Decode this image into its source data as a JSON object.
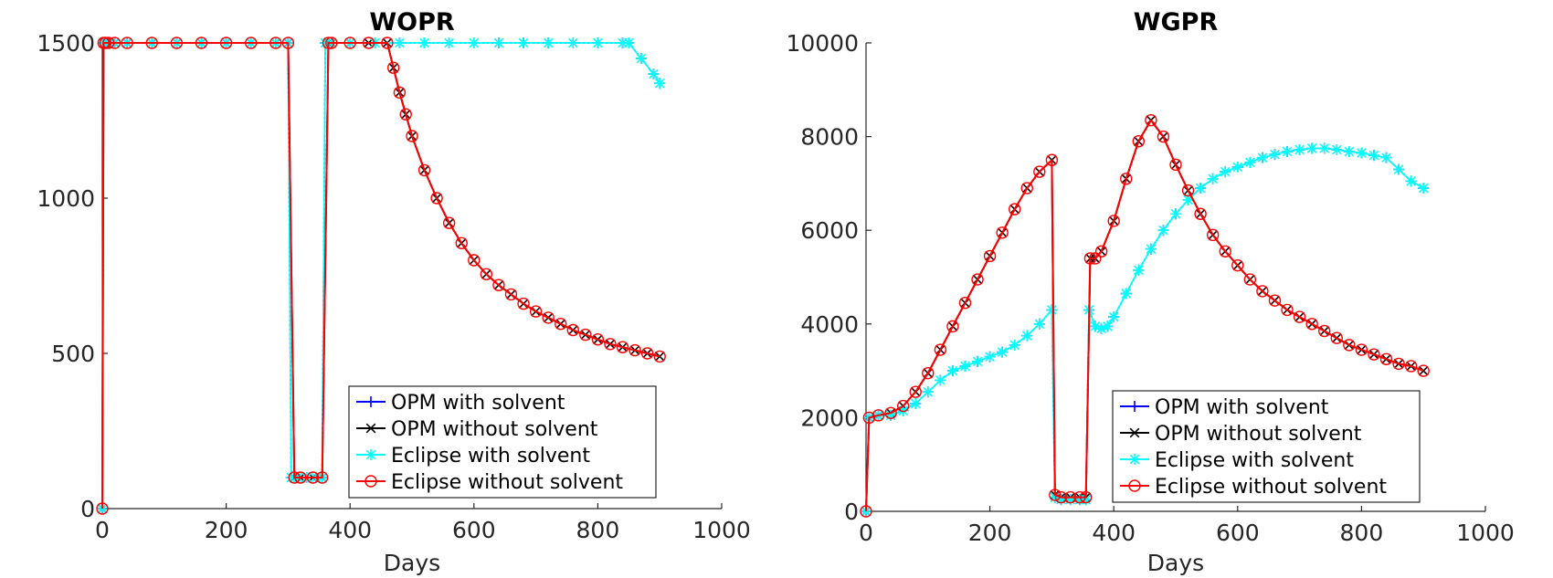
{
  "chart_data": [
    {
      "type": "line",
      "title": "WOPR",
      "xlabel": "Days",
      "ylabel": "",
      "xlim": [
        0,
        1000
      ],
      "ylim": [
        0,
        1500
      ],
      "xticks": [
        "0",
        "200",
        "400",
        "600",
        "800",
        "1000"
      ],
      "yticks": [
        "0",
        "500",
        "1000",
        "1500"
      ],
      "legend_position": "bottom-right",
      "series": [
        {
          "name": "OPM with solvent",
          "color": "#0000ff",
          "marker": "plus",
          "x": [
            0,
            2,
            5,
            10,
            20,
            40,
            80,
            120,
            160,
            200,
            240,
            280,
            300,
            305,
            315,
            330,
            345,
            355,
            360,
            370,
            400,
            440,
            480,
            520,
            560,
            600,
            640,
            680,
            720,
            760,
            800,
            840,
            850,
            870,
            890,
            900
          ],
          "y": [
            0,
            1500,
            1500,
            1500,
            1500,
            1500,
            1500,
            1500,
            1500,
            1500,
            1500,
            1500,
            1500,
            100,
            100,
            100,
            100,
            100,
            1500,
            1500,
            1500,
            1500,
            1500,
            1500,
            1500,
            1500,
            1500,
            1500,
            1500,
            1500,
            1500,
            1500,
            1500,
            1450,
            1400,
            1370
          ]
        },
        {
          "name": "OPM without solvent",
          "color": "#000000",
          "marker": "x",
          "x": [
            0,
            2,
            5,
            10,
            20,
            40,
            80,
            120,
            160,
            200,
            240,
            280,
            300,
            310,
            320,
            340,
            355,
            365,
            370,
            400,
            430,
            460,
            470,
            480,
            490,
            500,
            520,
            540,
            560,
            580,
            600,
            620,
            640,
            660,
            680,
            700,
            720,
            740,
            760,
            780,
            800,
            820,
            840,
            860,
            880,
            900
          ],
          "y": [
            0,
            1500,
            1500,
            1500,
            1500,
            1500,
            1500,
            1500,
            1500,
            1500,
            1500,
            1500,
            1500,
            100,
            100,
            100,
            100,
            1500,
            1500,
            1500,
            1500,
            1500,
            1420,
            1340,
            1270,
            1200,
            1090,
            1000,
            920,
            855,
            800,
            755,
            720,
            690,
            660,
            635,
            615,
            595,
            575,
            560,
            545,
            530,
            520,
            510,
            500,
            490
          ]
        },
        {
          "name": "Eclipse with solvent",
          "color": "#00ffff",
          "marker": "asterisk",
          "x": [
            0,
            2,
            5,
            10,
            20,
            40,
            80,
            120,
            160,
            200,
            240,
            280,
            300,
            305,
            315,
            330,
            345,
            355,
            360,
            370,
            400,
            440,
            480,
            520,
            560,
            600,
            640,
            680,
            720,
            760,
            800,
            840,
            850,
            870,
            890,
            900
          ],
          "y": [
            0,
            1500,
            1500,
            1500,
            1500,
            1500,
            1500,
            1500,
            1500,
            1500,
            1500,
            1500,
            1500,
            100,
            100,
            100,
            100,
            100,
            1500,
            1500,
            1500,
            1500,
            1500,
            1500,
            1500,
            1500,
            1500,
            1500,
            1500,
            1500,
            1500,
            1500,
            1500,
            1450,
            1400,
            1370
          ]
        },
        {
          "name": "Eclipse without solvent",
          "color": "#ff0000",
          "marker": "circle",
          "x": [
            0,
            2,
            5,
            10,
            20,
            40,
            80,
            120,
            160,
            200,
            240,
            280,
            300,
            310,
            320,
            340,
            355,
            365,
            370,
            400,
            430,
            460,
            470,
            480,
            490,
            500,
            520,
            540,
            560,
            580,
            600,
            620,
            640,
            660,
            680,
            700,
            720,
            740,
            760,
            780,
            800,
            820,
            840,
            860,
            880,
            900
          ],
          "y": [
            0,
            1500,
            1500,
            1500,
            1500,
            1500,
            1500,
            1500,
            1500,
            1500,
            1500,
            1500,
            1500,
            100,
            100,
            100,
            100,
            1500,
            1500,
            1500,
            1500,
            1500,
            1420,
            1340,
            1270,
            1200,
            1090,
            1000,
            920,
            855,
            800,
            755,
            720,
            690,
            660,
            635,
            615,
            595,
            575,
            560,
            545,
            530,
            520,
            510,
            500,
            490
          ]
        }
      ]
    },
    {
      "type": "line",
      "title": "WGPR",
      "xlabel": "Days",
      "ylabel": "",
      "xlim": [
        0,
        1000
      ],
      "ylim": [
        0,
        10000
      ],
      "xticks": [
        "0",
        "200",
        "400",
        "600",
        "800",
        "1000"
      ],
      "yticks": [
        "0",
        "2000",
        "4000",
        "6000",
        "8000",
        "10000"
      ],
      "legend_position": "bottom-right",
      "series": [
        {
          "name": "OPM with solvent",
          "color": "#0000ff",
          "marker": "plus",
          "x": [
            0,
            5,
            20,
            40,
            60,
            80,
            100,
            120,
            140,
            160,
            180,
            200,
            220,
            240,
            260,
            280,
            300,
            305,
            315,
            330,
            345,
            355,
            360,
            370,
            380,
            390,
            400,
            420,
            440,
            460,
            480,
            500,
            520,
            540,
            560,
            580,
            600,
            620,
            640,
            660,
            680,
            700,
            720,
            740,
            760,
            780,
            800,
            820,
            840,
            860,
            880,
            900
          ],
          "y": [
            0,
            2000,
            2050,
            2050,
            2150,
            2300,
            2550,
            2800,
            3000,
            3100,
            3200,
            3300,
            3400,
            3550,
            3750,
            4000,
            4300,
            300,
            250,
            250,
            250,
            250,
            4300,
            3950,
            3900,
            3950,
            4150,
            4650,
            5150,
            5600,
            6000,
            6350,
            6650,
            6900,
            7100,
            7250,
            7350,
            7450,
            7550,
            7620,
            7680,
            7720,
            7750,
            7750,
            7720,
            7680,
            7650,
            7600,
            7550,
            7300,
            7050,
            6900
          ]
        },
        {
          "name": "OPM without solvent",
          "color": "#000000",
          "marker": "x",
          "x": [
            0,
            5,
            20,
            40,
            60,
            80,
            100,
            120,
            140,
            160,
            180,
            200,
            220,
            240,
            260,
            280,
            300,
            305,
            315,
            330,
            345,
            355,
            362,
            370,
            380,
            400,
            420,
            440,
            460,
            480,
            500,
            520,
            540,
            560,
            580,
            600,
            620,
            640,
            660,
            680,
            700,
            720,
            740,
            760,
            780,
            800,
            820,
            840,
            860,
            880,
            900
          ],
          "y": [
            0,
            2000,
            2050,
            2100,
            2250,
            2550,
            2950,
            3450,
            3950,
            4450,
            4950,
            5450,
            5950,
            6450,
            6900,
            7250,
            7500,
            350,
            300,
            300,
            300,
            300,
            5400,
            5400,
            5550,
            6200,
            7100,
            7900,
            8350,
            8000,
            7400,
            6850,
            6350,
            5900,
            5550,
            5250,
            4950,
            4700,
            4500,
            4300,
            4150,
            4000,
            3850,
            3700,
            3550,
            3450,
            3350,
            3250,
            3150,
            3100,
            3000
          ]
        },
        {
          "name": "Eclipse with solvent",
          "color": "#00ffff",
          "marker": "asterisk",
          "x": [
            0,
            5,
            20,
            40,
            60,
            80,
            100,
            120,
            140,
            160,
            180,
            200,
            220,
            240,
            260,
            280,
            300,
            305,
            315,
            330,
            345,
            355,
            360,
            370,
            380,
            390,
            400,
            420,
            440,
            460,
            480,
            500,
            520,
            540,
            560,
            580,
            600,
            620,
            640,
            660,
            680,
            700,
            720,
            740,
            760,
            780,
            800,
            820,
            840,
            860,
            880,
            900
          ],
          "y": [
            0,
            2000,
            2050,
            2050,
            2150,
            2300,
            2550,
            2800,
            3000,
            3100,
            3200,
            3300,
            3400,
            3550,
            3750,
            4000,
            4300,
            300,
            250,
            250,
            250,
            250,
            4300,
            3950,
            3900,
            3950,
            4150,
            4650,
            5150,
            5600,
            6000,
            6350,
            6650,
            6900,
            7100,
            7250,
            7350,
            7450,
            7550,
            7620,
            7680,
            7720,
            7750,
            7750,
            7720,
            7680,
            7650,
            7600,
            7550,
            7300,
            7050,
            6900
          ]
        },
        {
          "name": "Eclipse without solvent",
          "color": "#ff0000",
          "marker": "circle",
          "x": [
            0,
            5,
            20,
            40,
            60,
            80,
            100,
            120,
            140,
            160,
            180,
            200,
            220,
            240,
            260,
            280,
            300,
            305,
            315,
            330,
            345,
            355,
            362,
            370,
            380,
            400,
            420,
            440,
            460,
            480,
            500,
            520,
            540,
            560,
            580,
            600,
            620,
            640,
            660,
            680,
            700,
            720,
            740,
            760,
            780,
            800,
            820,
            840,
            860,
            880,
            900
          ],
          "y": [
            0,
            2000,
            2050,
            2100,
            2250,
            2550,
            2950,
            3450,
            3950,
            4450,
            4950,
            5450,
            5950,
            6450,
            6900,
            7250,
            7500,
            350,
            300,
            300,
            300,
            300,
            5400,
            5400,
            5550,
            6200,
            7100,
            7900,
            8350,
            8000,
            7400,
            6850,
            6350,
            5900,
            5550,
            5250,
            4950,
            4700,
            4500,
            4300,
            4150,
            4000,
            3850,
            3700,
            3550,
            3450,
            3350,
            3250,
            3150,
            3100,
            3000
          ]
        }
      ]
    }
  ]
}
